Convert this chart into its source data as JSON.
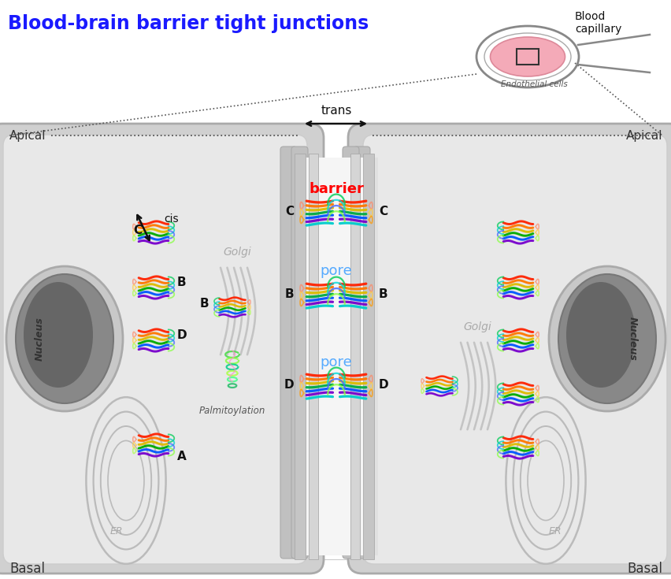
{
  "title": "Blood-brain barrier tight junctions",
  "title_color": "#1a1aff",
  "title_fontsize": 17,
  "bg_color": "#ffffff",
  "cell_bg": "#d8d8d8",
  "cell_inner_bg": "#eeeeee",
  "nucleus_outer": "#aaaaaa",
  "nucleus_inner": "#888888",
  "nucleus_core": "#666666",
  "golgi_color": "#bbbbbb",
  "er_color": "#bbbbbb",
  "membrane_color": "#cccccc",
  "junction_color": "#d0d0d0",
  "apical_label": "Apical",
  "basal_label": "Basal",
  "trans_label": "trans",
  "barrier_label": "barrier",
  "barrier_color": "#ff0000",
  "pore_label": "pore",
  "pore_color": "#55aaff",
  "cis_label": "cis",
  "golgi_label": "Golgi",
  "er_label": "ER",
  "nucleus_label": "Nucleus",
  "palmitoylation_label": "Palmitoylation",
  "blood_capillary_label": "Blood\ncapillary",
  "endothelial_label": "Endothelial cells",
  "label_A": "A",
  "label_B": "B",
  "label_C": "C",
  "label_D": "D",
  "dotted_color": "#555555",
  "arrow_color": "#111111",
  "protein_colors_main": [
    "#ff2200",
    "#ff8800",
    "#ddbb00",
    "#00aa00",
    "#0088ff",
    "#6600cc"
  ],
  "protein_colors_top": [
    "#00cc44",
    "#00dddd",
    "#4444ff",
    "#88ff44",
    "#ffcc00",
    "#ff6622"
  ],
  "protein_loop_colors": [
    "#ff6644",
    "#ffaa00",
    "#aaff44",
    "#44ffcc",
    "#44aaff",
    "#aa44ff"
  ]
}
